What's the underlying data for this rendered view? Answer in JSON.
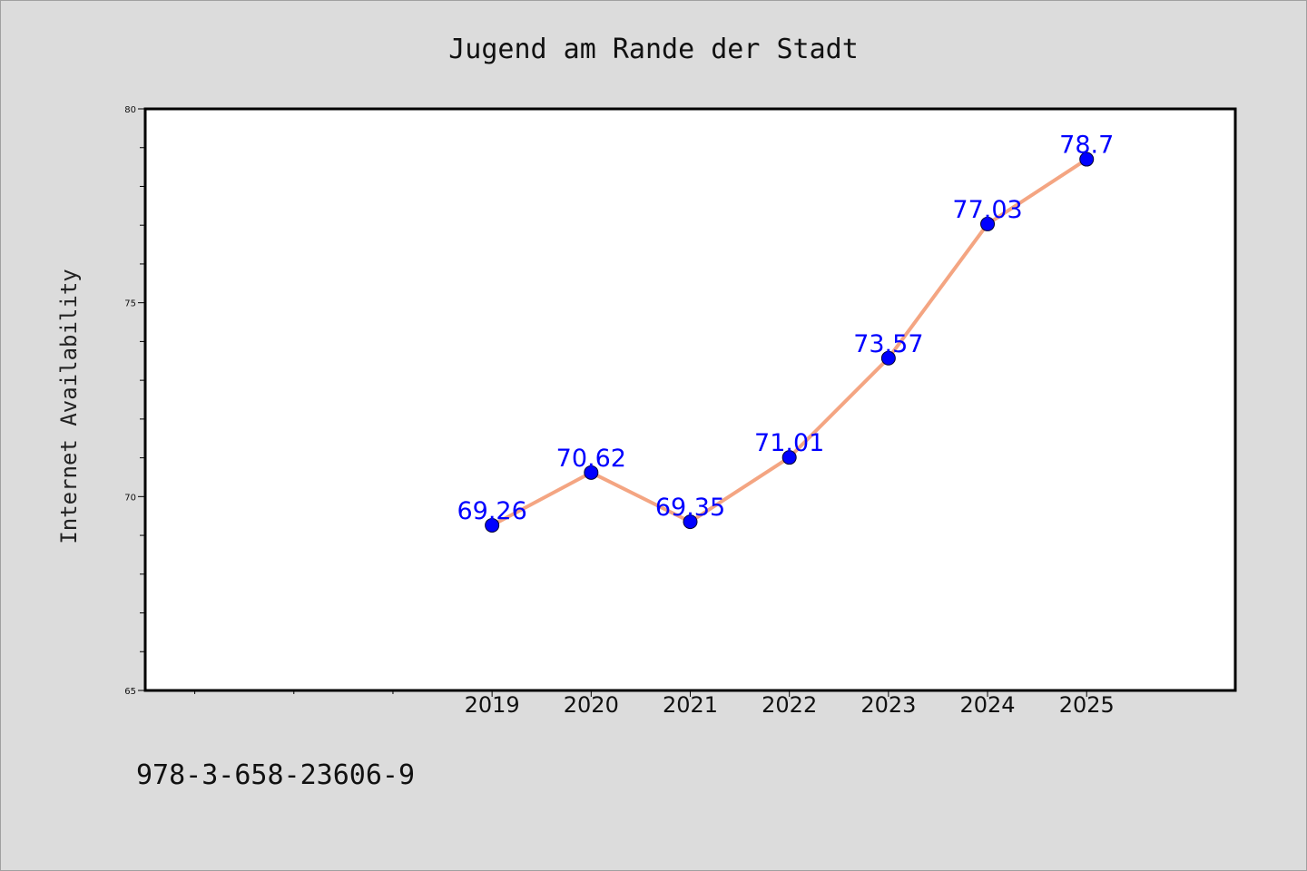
{
  "chart_data": {
    "type": "line",
    "title": "Jugend am Rande der Stadt",
    "xlabel": "",
    "ylabel": "Internet Availability",
    "x": [
      2019,
      2020,
      2021,
      2022,
      2023,
      2024,
      2025
    ],
    "x_tick_labels": [
      "2019",
      "2020",
      "2021",
      "2022",
      "2023",
      "2024",
      "2025"
    ],
    "y_tick_labels": [
      "65",
      "70",
      "75",
      "80"
    ],
    "series": [
      {
        "values": [
          69.26,
          70.62,
          69.35,
          71.01,
          73.57,
          77.03,
          78.7
        ],
        "data_labels": [
          "69.26",
          "70.62",
          "69.35",
          "71.01",
          "73.57",
          "77.03",
          "78.7"
        ],
        "line_color": "#f4a582",
        "marker_color": "#0000ff"
      }
    ],
    "ylim": [
      65,
      80
    ],
    "xlim": [
      2015.5,
      2026.5
    ],
    "grid": false,
    "legend": "none"
  },
  "footer": {
    "isbn": "978-3-658-23606-9"
  },
  "colors": {
    "background": "#dcdcdc",
    "plot_background": "#ffffff",
    "axis": "#000000",
    "data_label": "#0000ff"
  }
}
